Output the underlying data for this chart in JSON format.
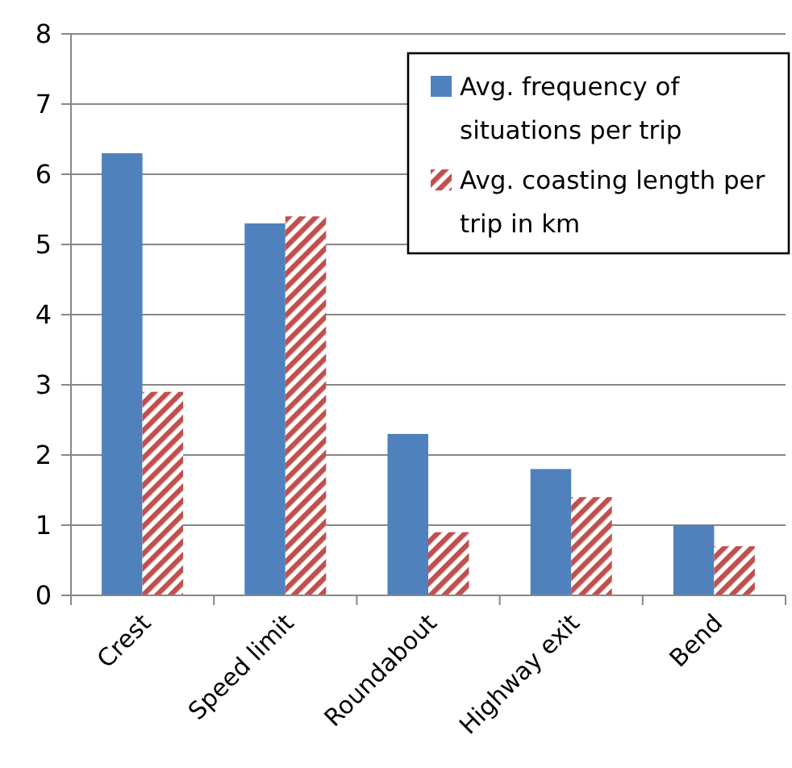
{
  "chart_data": {
    "type": "bar",
    "categories": [
      "Crest",
      "Speed limit",
      "Roundabout",
      "Highway exit",
      "Bend"
    ],
    "series": [
      {
        "name": "Avg. frequency of situations per trip",
        "color": "#4f81bd",
        "values": [
          6.3,
          5.3,
          2.3,
          1.8,
          1.0
        ]
      },
      {
        "name": "Avg. coasting length per trip in km",
        "color": "#c0504d",
        "values": [
          2.9,
          5.4,
          0.9,
          1.4,
          0.7
        ]
      }
    ],
    "ylim": [
      0,
      8
    ],
    "yticks": [
      0,
      1,
      2,
      3,
      4,
      5,
      6,
      7,
      8
    ],
    "grid": "y",
    "legend": "top right"
  }
}
